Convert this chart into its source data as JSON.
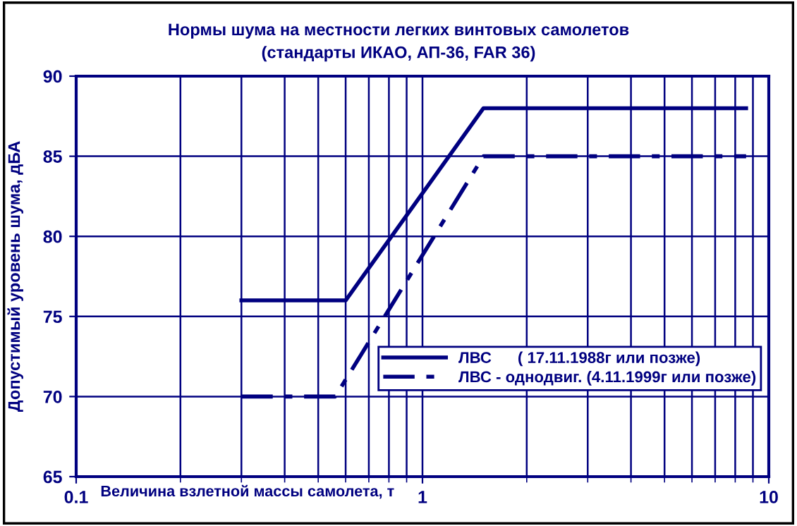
{
  "chart_data": {
    "type": "line",
    "title": "Нормы шума на местности легких винтовых самолетов\n(стандарты ИКАО, АП-36, FAR 36)",
    "xlabel": "Величина взлетной массы самолета, т",
    "ylabel": "Допустимый уровень шума, дБА",
    "log": "x",
    "xlim": [
      0.1,
      10
    ],
    "xticks": [
      0.1,
      1,
      10
    ],
    "ylim": [
      65,
      90
    ],
    "yticks": [
      65,
      70,
      75,
      80,
      85,
      90
    ],
    "grid": true,
    "legend": "right",
    "marker": "none",
    "series": [
      {
        "name": "ЛВС      ( 17.11.1988г или позже)",
        "color": "#000080",
        "line_style": "solid",
        "x": [
          0.3,
          0.6,
          1.5,
          8.6
        ],
        "values": [
          76,
          76,
          88,
          88
        ]
      },
      {
        "name": "ЛВС - однодвиг. (4.11.1999г или позже)",
        "color": "#000080",
        "line_style": "dashed",
        "x": [
          0.3,
          0.56,
          1.5,
          8.6
        ],
        "values": [
          70,
          70,
          85,
          85
        ]
      }
    ]
  }
}
